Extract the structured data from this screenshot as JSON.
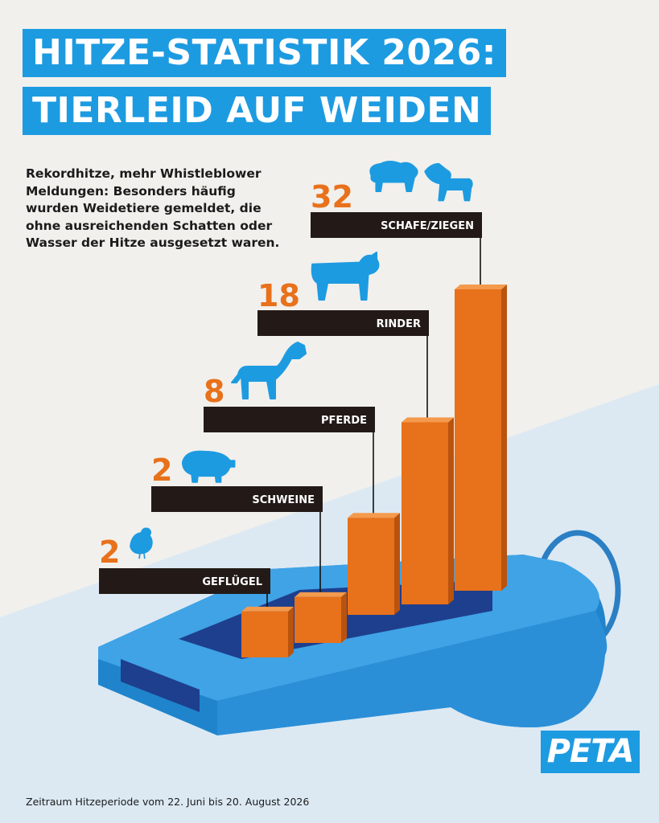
{
  "title": {
    "line1": "HITZE-STATISTIK 2026:",
    "line2": "TIERLEID AUF  WEIDEN"
  },
  "intro": "Rekordhitze, mehr Whistleblower Meldungen: Besonders häufig wurden Weidetiere gemeldet, die ohne ausreichenden Schatten oder Wasser der Hitze ausgesetzt waren.",
  "footnote": "Zeitraum Hitzeperiode vom 22. Juni bis 20. August 2026",
  "logo": "PETA",
  "colors": {
    "accent_blue": "#1d9be1",
    "bar_orange": "#e8711b",
    "label_dark": "#231a17",
    "background": "#f1f0ec"
  },
  "chart_data": {
    "type": "bar",
    "categories": [
      "GEFLÜGEL",
      "SCHWEINE",
      "PFERDE",
      "RINDER",
      "SCHAFE/ZIEGEN"
    ],
    "values": [
      2,
      2,
      8,
      18,
      32
    ],
    "value_labels": [
      "2",
      "2",
      "8",
      "18",
      "32"
    ],
    "icons": [
      "chicken-icon",
      "pig-icon",
      "horse-icon",
      "cow-icon",
      "sheep-goat-icon"
    ],
    "title": "",
    "xlabel": "",
    "ylabel": "",
    "ylim": [
      0,
      32
    ],
    "grid": false,
    "legend": "none"
  }
}
